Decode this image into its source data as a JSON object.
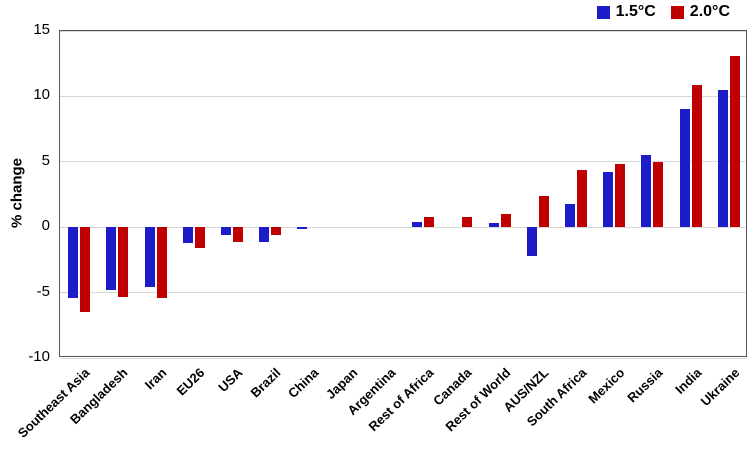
{
  "chart_data": {
    "type": "bar",
    "title": "",
    "xlabel": "",
    "ylabel": "% change",
    "ylim": [
      -10,
      15
    ],
    "yticks": [
      15,
      10,
      5,
      0,
      -5,
      -10
    ],
    "grid": true,
    "legend_position": "top-right",
    "categories": [
      "Southeast Asia",
      "Bangladesh",
      "Iran",
      "EU26",
      "USA",
      "Brazil",
      "China",
      "Japan",
      "Argentina",
      "Rest of Africa",
      "Canada",
      "Rest of World",
      "AUS/NZL",
      "South Africa",
      "Mexico",
      "Russia",
      "India",
      "Ukraine"
    ],
    "series": [
      {
        "name": "1.5°C",
        "color": "#1c1cc9",
        "values": [
          -5.4,
          -4.8,
          -4.6,
          -1.2,
          -0.6,
          -1.1,
          -0.15,
          0,
          0,
          0.4,
          0,
          0.3,
          -2.2,
          1.8,
          4.2,
          5.5,
          9.0,
          10.5
        ]
      },
      {
        "name": "2.0°C",
        "color": "#c00000",
        "values": [
          -6.5,
          -5.3,
          -5.4,
          -1.6,
          -1.1,
          -0.6,
          0,
          0,
          0,
          0.8,
          0.8,
          1.0,
          2.4,
          4.4,
          4.8,
          5.0,
          10.9,
          13.1
        ]
      }
    ],
    "axis_color": "#555555",
    "gridline_color": "#d9d9d9"
  }
}
